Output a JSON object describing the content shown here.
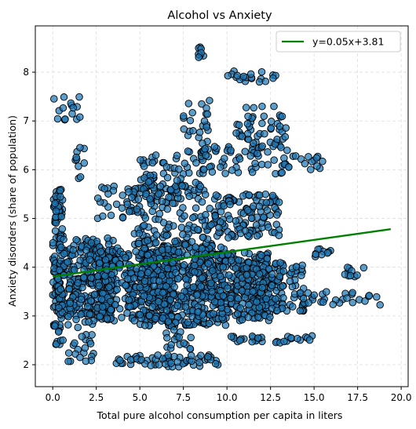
{
  "chart_data": {
    "type": "scatter",
    "title": "Alcohol vs Anxiety",
    "xlabel": "Total pure alcohol consumption per capita in liters",
    "ylabel": "Anxiety disorders (share of population)",
    "xlim": [
      -1.0,
      20.4
    ],
    "ylim": [
      1.55,
      8.95
    ],
    "xticks": [
      0.0,
      2.5,
      5.0,
      7.5,
      10.0,
      12.5,
      15.0,
      17.5,
      20.0
    ],
    "xtick_labels": [
      "0.0",
      "2.5",
      "5.0",
      "7.5",
      "10.0",
      "12.5",
      "15.0",
      "17.5",
      "20.0"
    ],
    "yticks": [
      2,
      3,
      4,
      5,
      6,
      7,
      8
    ],
    "ytick_labels": [
      "2",
      "3",
      "4",
      "5",
      "6",
      "7",
      "8"
    ],
    "grid": true,
    "legend_position": "top-right",
    "colors": {
      "point_fill": "#1f77b4",
      "point_edge": "#000000",
      "trend_line": "#008000",
      "grid": "#dddddd"
    },
    "trend_line": {
      "name": "y=0.05x+3.81",
      "slope": 0.05,
      "intercept": 3.81,
      "x_range": [
        0.0,
        19.4
      ]
    },
    "clusters": [
      {
        "x": [
          0.0,
          0.6
        ],
        "y": [
          2.4,
          5.6
        ],
        "n": 130
      },
      {
        "x": [
          0.3,
          3.5
        ],
        "y": [
          3.0,
          4.6
        ],
        "n": 260
      },
      {
        "x": [
          2.5,
          7.0
        ],
        "y": [
          2.9,
          4.4
        ],
        "n": 320
      },
      {
        "x": [
          5.0,
          10.0
        ],
        "y": [
          2.8,
          4.5
        ],
        "n": 360
      },
      {
        "x": [
          8.0,
          12.5
        ],
        "y": [
          2.9,
          4.3
        ],
        "n": 260
      },
      {
        "x": [
          10.5,
          14.5
        ],
        "y": [
          3.1,
          4.1
        ],
        "n": 150
      },
      {
        "x": [
          4.5,
          9.0
        ],
        "y": [
          4.3,
          5.7
        ],
        "n": 140
      },
      {
        "x": [
          9.0,
          13.0
        ],
        "y": [
          4.6,
          5.5
        ],
        "n": 120
      },
      {
        "x": [
          0.8,
          2.4
        ],
        "y": [
          2.0,
          3.4
        ],
        "n": 40
      },
      {
        "x": [
          3.5,
          9.5
        ],
        "y": [
          1.95,
          2.2
        ],
        "n": 60
      },
      {
        "x": [
          6.5,
          8.0
        ],
        "y": [
          2.3,
          2.9
        ],
        "n": 25
      },
      {
        "x": [
          10.0,
          15.0
        ],
        "y": [
          2.45,
          2.6
        ],
        "n": 30
      },
      {
        "x": [
          5.0,
          8.5
        ],
        "y": [
          5.5,
          6.3
        ],
        "n": 60
      },
      {
        "x": [
          8.5,
          13.5
        ],
        "y": [
          5.9,
          6.6
        ],
        "n": 70
      },
      {
        "x": [
          13.5,
          15.5
        ],
        "y": [
          6.0,
          6.3
        ],
        "n": 15
      },
      {
        "x": [
          10.5,
          13.5
        ],
        "y": [
          6.6,
          7.3
        ],
        "n": 40
      },
      {
        "x": [
          7.5,
          9.0
        ],
        "y": [
          6.2,
          7.5
        ],
        "n": 30
      },
      {
        "x": [
          0.0,
          1.6
        ],
        "y": [
          7.0,
          7.5
        ],
        "n": 15
      },
      {
        "x": [
          10.0,
          12.8
        ],
        "y": [
          7.8,
          8.05
        ],
        "n": 20
      },
      {
        "x": [
          8.3,
          8.7
        ],
        "y": [
          8.3,
          8.6
        ],
        "n": 8
      },
      {
        "x": [
          1.3,
          1.9
        ],
        "y": [
          5.8,
          6.6
        ],
        "n": 10
      },
      {
        "x": [
          2.5,
          5.0
        ],
        "y": [
          5.0,
          5.7
        ],
        "n": 30
      },
      {
        "x": [
          14.5,
          19.4
        ],
        "y": [
          3.2,
          3.5
        ],
        "n": 25
      },
      {
        "x": [
          16.5,
          18.0
        ],
        "y": [
          3.8,
          4.0
        ],
        "n": 10
      },
      {
        "x": [
          15.0,
          16.0
        ],
        "y": [
          4.2,
          4.4
        ],
        "n": 10
      }
    ]
  }
}
